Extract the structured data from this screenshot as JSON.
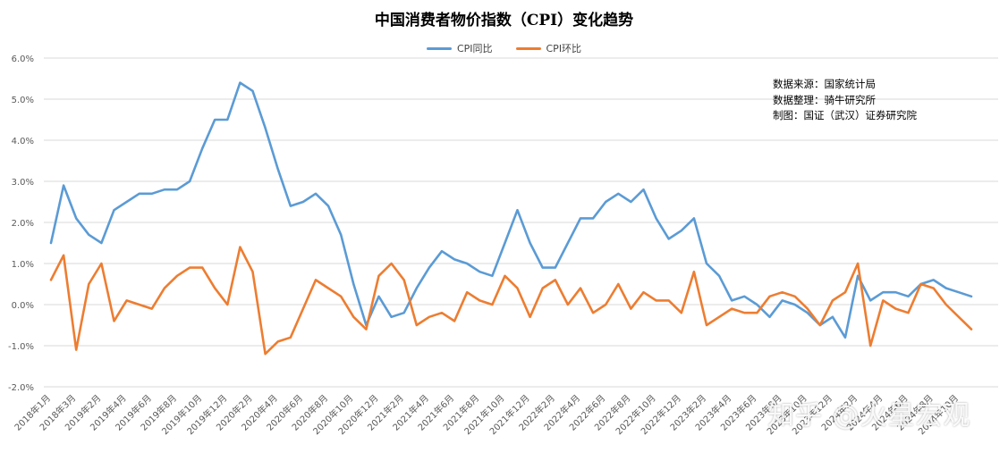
{
  "colors": {
    "yoy": "#5b9bd5",
    "mom": "#ed7d31",
    "grid": "#d9d9d9",
    "text": "#595959"
  },
  "chart_data": {
    "type": "line",
    "title": "中国消费者物价指数（CPI）变化趋势",
    "legend_position": "top",
    "grid": true,
    "ylim": [
      -0.02,
      0.06
    ],
    "y_ticks": [
      "-2.0%",
      "-1.0%",
      "0.0%",
      "1.0%",
      "2.0%",
      "3.0%",
      "4.0%",
      "5.0%",
      "6.0%"
    ],
    "x_tick_labels": [
      "2018年1月",
      "2018年3月",
      "2019年2月",
      "2019年4月",
      "2019年6月",
      "2019年8月",
      "2019年10月",
      "2019年12月",
      "2020年2月",
      "2020年4月",
      "2020年6月",
      "2020年8月",
      "2020年10月",
      "2020年12月",
      "2021年2月",
      "2021年4月",
      "2021年6月",
      "2021年8月",
      "2021年10月",
      "2021年12月",
      "2022年2月",
      "2022年4月",
      "2022年6月",
      "2022年8月",
      "2022年10月",
      "2022年12月",
      "2023年2月",
      "2023年4月",
      "2023年6月",
      "2023年8月",
      "2023年10月",
      "2023年12月",
      "2024年2月",
      "2024年4月",
      "2024年6月",
      "2024年8月",
      "2024年10月"
    ],
    "series": [
      {
        "name": "CPI同比",
        "color": "#5b9bd5",
        "values": [
          0.015,
          0.029,
          0.021,
          0.017,
          0.015,
          0.023,
          0.025,
          0.027,
          0.027,
          0.028,
          0.028,
          0.03,
          0.038,
          0.045,
          0.045,
          0.054,
          0.052,
          0.043,
          0.033,
          0.024,
          0.025,
          0.027,
          0.024,
          0.017,
          0.005,
          -0.005,
          0.002,
          -0.003,
          -0.002,
          0.004,
          0.009,
          0.013,
          0.011,
          0.01,
          0.008,
          0.007,
          0.015,
          0.023,
          0.015,
          0.009,
          0.009,
          0.015,
          0.021,
          0.021,
          0.025,
          0.027,
          0.025,
          0.028,
          0.021,
          0.016,
          0.018,
          0.021,
          0.01,
          0.007,
          0.001,
          0.002,
          0.0,
          -0.003,
          0.001,
          0.0,
          -0.002,
          -0.005,
          -0.003,
          -0.008,
          0.007,
          0.001,
          0.003,
          0.003,
          0.002,
          0.005,
          0.006,
          0.004,
          0.003,
          0.002
        ]
      },
      {
        "name": "CPI环比",
        "color": "#ed7d31",
        "values": [
          0.006,
          0.012,
          -0.011,
          0.005,
          0.01,
          -0.004,
          0.001,
          0.0,
          -0.001,
          0.004,
          0.007,
          0.009,
          0.009,
          0.004,
          0.0,
          0.014,
          0.008,
          -0.012,
          -0.009,
          -0.008,
          -0.001,
          0.006,
          0.004,
          0.002,
          -0.003,
          -0.006,
          0.007,
          0.01,
          0.006,
          -0.005,
          -0.003,
          -0.002,
          -0.004,
          0.003,
          0.001,
          0.0,
          0.007,
          0.004,
          -0.003,
          0.004,
          0.006,
          0.0,
          0.004,
          -0.002,
          0.0,
          0.005,
          -0.001,
          0.003,
          0.001,
          0.001,
          -0.002,
          0.008,
          -0.005,
          -0.003,
          -0.001,
          -0.002,
          -0.002,
          0.002,
          0.003,
          0.002,
          -0.001,
          -0.005,
          0.001,
          0.003,
          0.01,
          -0.01,
          0.001,
          -0.001,
          -0.002,
          0.005,
          0.004,
          0.0,
          -0.003,
          -0.006
        ]
      }
    ]
  },
  "source": {
    "line1": "数据来源：国家统计局",
    "line2": "数据整理：骑牛研究所",
    "line3": "制图：国证（武汉）证券研究院"
  },
  "watermark": "知乎 @火星宏观"
}
